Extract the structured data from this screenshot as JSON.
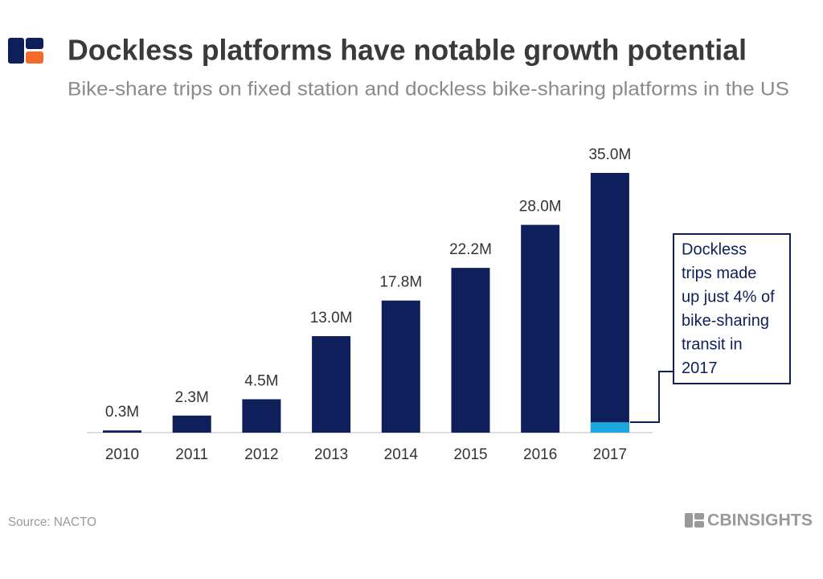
{
  "chart_data": {
    "type": "bar",
    "title": "Dockless platforms have notable growth potential",
    "subtitle": "Bike-share trips on fixed station and dockless bike-sharing platforms in the US",
    "categories": [
      "2010",
      "2011",
      "2012",
      "2013",
      "2014",
      "2015",
      "2016",
      "2017"
    ],
    "values": [
      0.3,
      2.3,
      4.5,
      13.0,
      17.8,
      22.2,
      28.0,
      35.0
    ],
    "value_labels": [
      "0.3M",
      "2.3M",
      "4.5M",
      "13.0M",
      "17.8M",
      "22.2M",
      "28.0M",
      "35.0M"
    ],
    "color": "#0e1f5b",
    "overlay": {
      "color": "#1ba8e0",
      "values": [
        null,
        null,
        null,
        null,
        null,
        null,
        null,
        1.4
      ]
    },
    "annotation": [
      "Dockless",
      "trips made",
      "up just 4% of",
      "bike-sharing",
      "transit in",
      "2017"
    ],
    "source": "Source: NACTO",
    "brand": "CBINSIGHTS"
  }
}
